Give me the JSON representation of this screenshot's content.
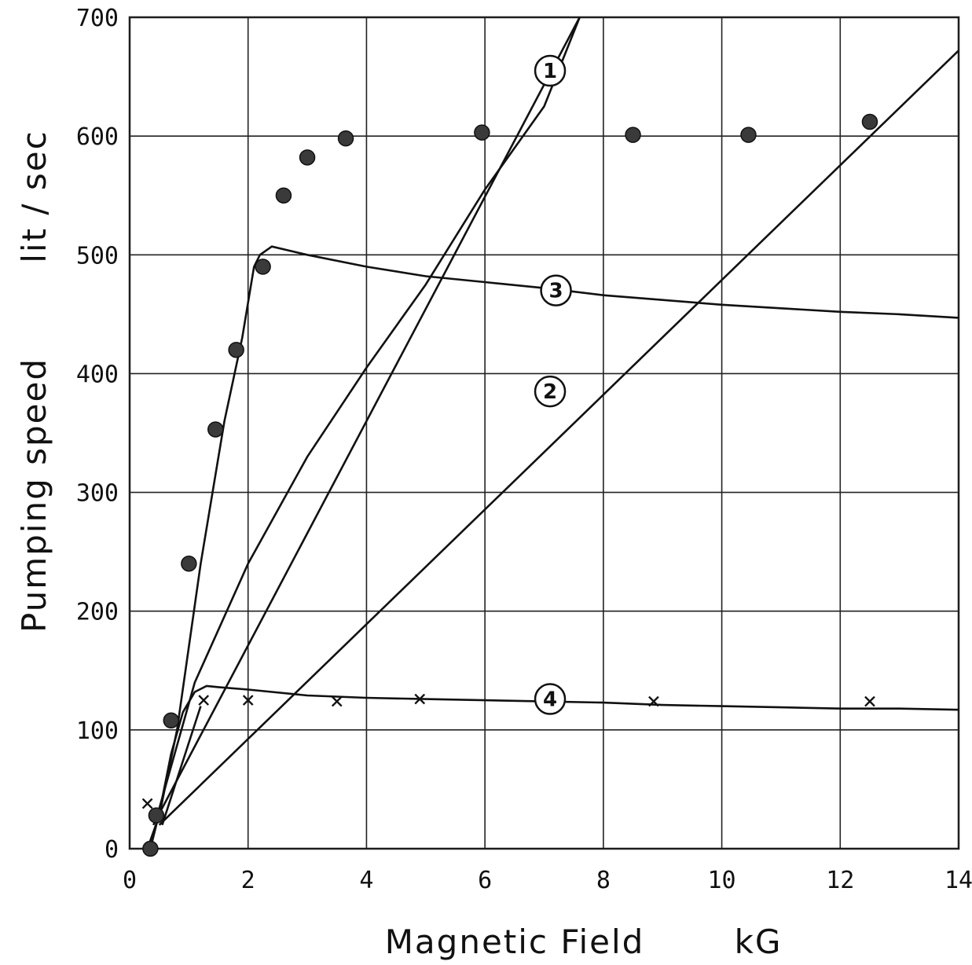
{
  "chart_data": {
    "type": "line",
    "title": "",
    "xlabel": "Magnetic Field",
    "xunit": "kG",
    "ylabel": "Pumping speed",
    "yunit": "lit / sec",
    "xlim": [
      0,
      14
    ],
    "ylim": [
      0,
      700
    ],
    "x_ticks": [
      0,
      2,
      4,
      6,
      8,
      10,
      12,
      14
    ],
    "y_ticks": [
      0,
      100,
      200,
      300,
      400,
      500,
      600,
      700
    ],
    "grid": true,
    "series": [
      {
        "label": "1",
        "style": "line",
        "label_at": [
          7.1,
          655
        ],
        "points": [
          [
            0.4,
            20
          ],
          [
            7.6,
            700
          ]
        ]
      },
      {
        "label": "2",
        "style": "line",
        "label_at": [
          7.1,
          385
        ],
        "points": [
          [
            0.5,
            20
          ],
          [
            14,
            672
          ]
        ]
      },
      {
        "label": "3",
        "style": "line",
        "label_at": [
          7.2,
          470
        ],
        "points": [
          [
            0.3,
            0
          ],
          [
            0.5,
            28
          ],
          [
            0.8,
            100
          ],
          [
            1.2,
            240
          ],
          [
            1.6,
            360
          ],
          [
            1.9,
            430
          ],
          [
            2.1,
            490
          ],
          [
            2.2,
            500
          ],
          [
            2.4,
            507
          ],
          [
            3,
            500
          ],
          [
            4,
            490
          ],
          [
            5,
            482
          ],
          [
            6,
            477
          ],
          [
            7,
            472
          ],
          [
            8,
            466
          ],
          [
            9,
            462
          ],
          [
            10,
            458
          ],
          [
            11,
            455
          ],
          [
            12,
            452
          ],
          [
            13,
            450
          ],
          [
            14,
            447
          ]
        ]
      },
      {
        "label": "4",
        "style": "line",
        "label_at": [
          7.1,
          126
        ],
        "points": [
          [
            0.35,
            0
          ],
          [
            0.5,
            30
          ],
          [
            0.7,
            80
          ],
          [
            0.9,
            115
          ],
          [
            1.1,
            132
          ],
          [
            1.3,
            137
          ],
          [
            1.5,
            136
          ],
          [
            2,
            134
          ],
          [
            3,
            129
          ],
          [
            4,
            127
          ],
          [
            5,
            126
          ],
          [
            6,
            125
          ],
          [
            7,
            124
          ],
          [
            8,
            123
          ],
          [
            9,
            121
          ],
          [
            10,
            120
          ],
          [
            11,
            119
          ],
          [
            12,
            118
          ],
          [
            13,
            118
          ],
          [
            14,
            117
          ]
        ]
      },
      {
        "label": "",
        "style": "line",
        "points": [
          [
            0.55,
            20
          ],
          [
            1.2,
            120
          ]
        ]
      },
      {
        "label": "",
        "style": "line",
        "points": [
          [
            0.45,
            25
          ],
          [
            1.1,
            140
          ],
          [
            2.0,
            240
          ],
          [
            3.0,
            330
          ],
          [
            4.0,
            405
          ],
          [
            5.0,
            475
          ],
          [
            6.0,
            555
          ],
          [
            7.0,
            625
          ],
          [
            7.6,
            700
          ]
        ]
      },
      {
        "label": "",
        "style": "dots",
        "points": [
          [
            0.35,
            0
          ],
          [
            0.45,
            28
          ],
          [
            0.7,
            108
          ],
          [
            1.0,
            240
          ],
          [
            1.45,
            353
          ],
          [
            1.8,
            420
          ],
          [
            2.25,
            490
          ],
          [
            2.6,
            550
          ],
          [
            3.0,
            582
          ],
          [
            3.65,
            598
          ],
          [
            5.95,
            603
          ],
          [
            8.5,
            601
          ],
          [
            10.45,
            601
          ],
          [
            12.5,
            612
          ]
        ]
      },
      {
        "label": "",
        "style": "crosses",
        "points": [
          [
            0.3,
            38
          ],
          [
            1.25,
            125
          ],
          [
            2.0,
            125
          ],
          [
            3.5,
            124
          ],
          [
            4.9,
            126
          ],
          [
            8.85,
            124
          ],
          [
            12.5,
            124
          ]
        ]
      }
    ]
  }
}
